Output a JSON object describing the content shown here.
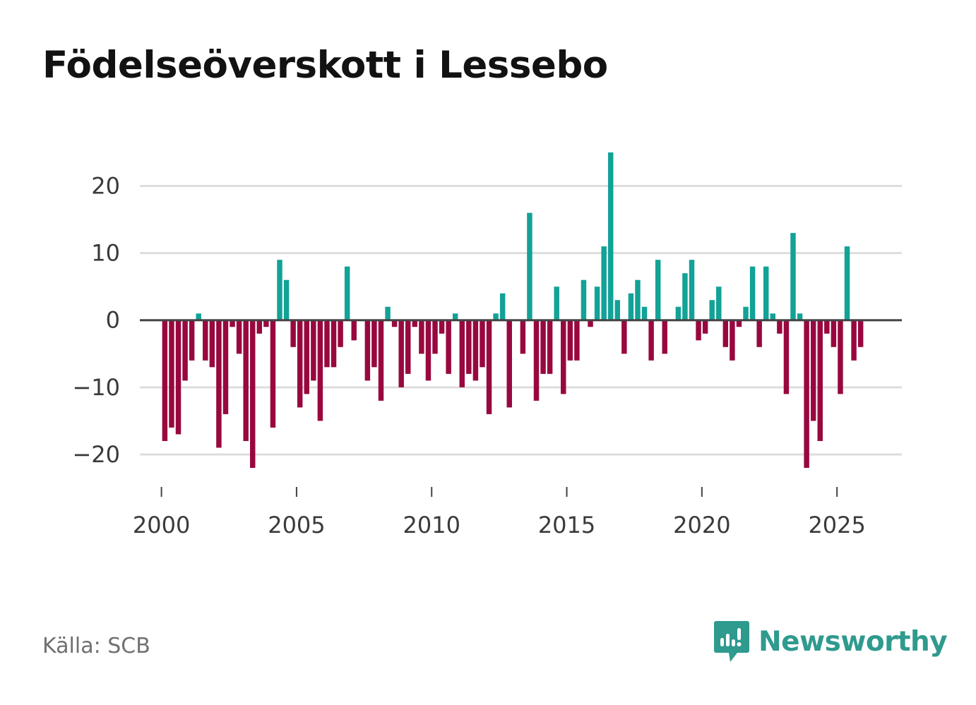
{
  "title": "Födelseöverskott i Lessebo",
  "source": "Källa: SCB",
  "brand": {
    "name": "Newsworthy",
    "icon": "newsworthy-chart-bubble-icon",
    "color": "#2f9a8e"
  },
  "colors": {
    "positive": "#12a297",
    "negative": "#98083f",
    "zero_line": "#444444",
    "grid": "#dddddd"
  },
  "chart_data": {
    "type": "bar",
    "title": "Födelseöverskott i Lessebo",
    "xlabel": "",
    "ylabel": "",
    "ylim": [
      -26,
      25
    ],
    "xlim": [
      1999.2,
      2027.4
    ],
    "grid": true,
    "legend": "none",
    "y_ticks": [
      {
        "value": 20,
        "label": "20"
      },
      {
        "value": 10,
        "label": "10"
      },
      {
        "value": 0,
        "label": "0"
      },
      {
        "value": -10,
        "label": "−10"
      },
      {
        "value": -20,
        "label": "−20"
      }
    ],
    "x_ticks": [
      {
        "value": 2000,
        "label": "2000"
      },
      {
        "value": 2005,
        "label": "2005"
      },
      {
        "value": 2010,
        "label": "2010"
      },
      {
        "value": 2015,
        "label": "2015"
      },
      {
        "value": 2020,
        "label": "2020"
      },
      {
        "value": 2025,
        "label": "2025"
      }
    ],
    "period": "quarterly",
    "start": "2000-Q1",
    "series": [
      {
        "name": "Födelseöverskott",
        "values": [
          -18,
          -16,
          -17,
          -9,
          -6,
          1,
          -6,
          -7,
          -19,
          -14,
          -1,
          -5,
          -18,
          -22,
          -2,
          -1,
          -16,
          9,
          6,
          -4,
          -13,
          -11,
          -9,
          -15,
          -7,
          -7,
          -4,
          8,
          -3,
          0,
          -9,
          -7,
          -12,
          2,
          -1,
          -10,
          -8,
          -1,
          -5,
          -9,
          -5,
          -2,
          -8,
          1,
          -10,
          -8,
          -9,
          -7,
          -14,
          1,
          4,
          -13,
          0,
          -5,
          16,
          -12,
          -8,
          -8,
          5,
          -11,
          -6,
          -6,
          6,
          -1,
          5,
          11,
          25,
          3,
          -5,
          4,
          6,
          2,
          -6,
          9,
          -5,
          0,
          2,
          7,
          9,
          -3,
          -2,
          3,
          5,
          -4,
          -6,
          -1,
          2,
          8,
          -4,
          8,
          1,
          -2,
          -11,
          13,
          1,
          -22,
          -15,
          -18,
          -2,
          -4,
          -11,
          11,
          -6,
          -4
        ]
      }
    ]
  }
}
